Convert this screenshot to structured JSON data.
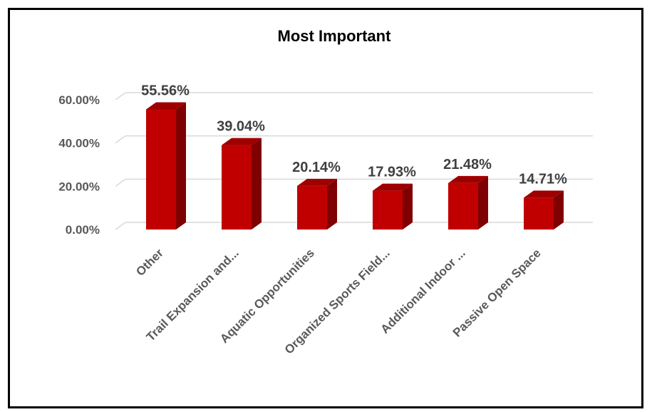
{
  "chart_data": {
    "type": "bar",
    "title": "Most Important",
    "categories": [
      "Other",
      "Trail Expansion and...",
      "Aquatic Opportunities",
      "Organized Sports Field...",
      "Additional Indoor ...",
      "Passive Open Space"
    ],
    "values": [
      55.56,
      39.04,
      20.14,
      17.93,
      21.48,
      14.71
    ],
    "data_labels": [
      "55.56%",
      "39.04%",
      "20.14%",
      "17.93%",
      "21.48%",
      "14.71%"
    ],
    "y_ticks": [
      "0.00%",
      "20.00%",
      "40.00%",
      "60.00%"
    ],
    "y_tick_values": [
      0,
      20,
      40,
      60
    ],
    "ylim": [
      0,
      60
    ],
    "grid": true,
    "style": "3d-column",
    "colors": {
      "bar_front": "#c00000",
      "bar_side": "#7f0000",
      "bar_top": "#9e0000",
      "grid": "#d9d9d9"
    }
  }
}
